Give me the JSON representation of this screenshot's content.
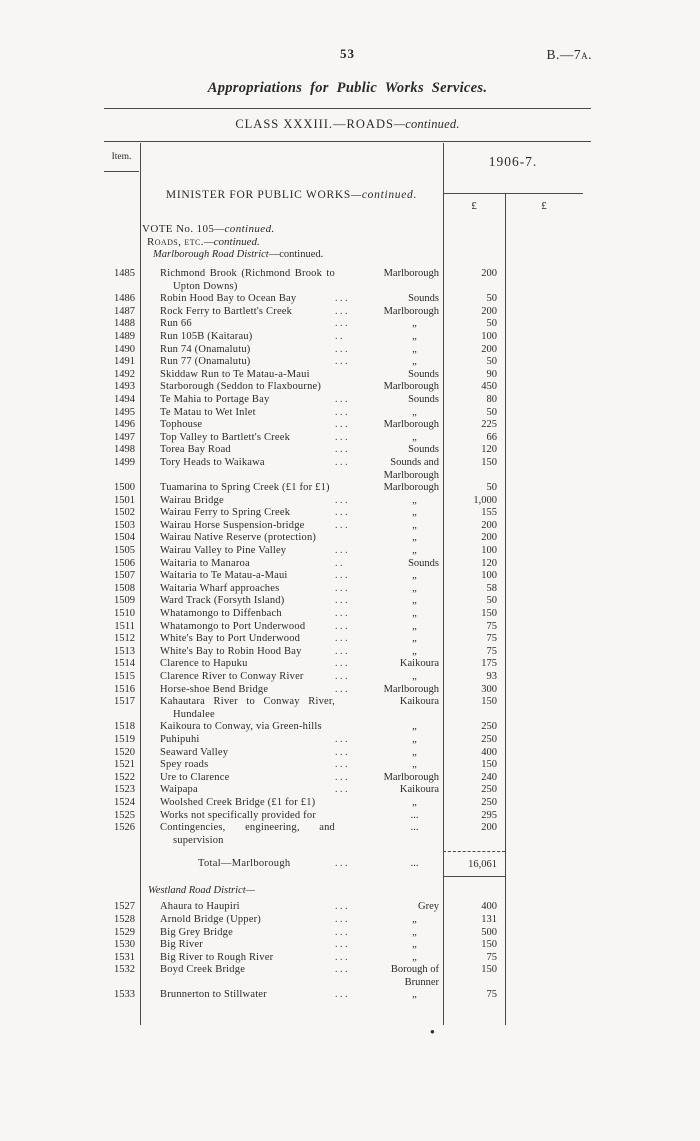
{
  "page": {
    "number": "53",
    "doc_ref": "B.—7a.",
    "title": "Appropriations for Public Works Services.",
    "class_heading": {
      "main": "CLASS XXXIII.—ROADS",
      "cont": "—continued."
    }
  },
  "table": {
    "item_header": "Item.",
    "year_header": "1906-7.",
    "pound_headers": [
      "£",
      "£"
    ],
    "minister": {
      "main": "MINISTER FOR PUBLIC WORKS",
      "cont": "—continued."
    },
    "vote": {
      "main": "VOTE No. 105",
      "cont": "—continued."
    },
    "subvote": {
      "main": "Roads, etc.",
      "cont": "—continued."
    },
    "district_heading": {
      "main": "Marlborough Road District",
      "cont": "—continued."
    },
    "rows": [
      {
        "item": "1485",
        "desc": "Richmond Brook (Richmond Brook to Upton Downs)",
        "dots": "",
        "loc": "Marlborough",
        "amt": "200"
      },
      {
        "item": "1486",
        "desc": "Robin Hood Bay to Ocean Bay",
        "dots": "...",
        "loc": "Sounds",
        "amt": "50"
      },
      {
        "item": "1487",
        "desc": "Rock Ferry to Bartlett's Creek",
        "dots": "...",
        "loc": "Marlborough",
        "amt": "200"
      },
      {
        "item": "1488",
        "desc": "Run 66",
        "dots": "...",
        "loc": "„",
        "amt": "50"
      },
      {
        "item": "1489",
        "desc": "Run 105B (Kaitarau)",
        "dots": "..",
        "loc": "„",
        "amt": "100"
      },
      {
        "item": "1490",
        "desc": "Run 74 (Onamalutu)",
        "dots": "...",
        "loc": "„",
        "amt": "200"
      },
      {
        "item": "1491",
        "desc": "Run 77 (Onamalutu)",
        "dots": "...",
        "loc": "„",
        "amt": "50"
      },
      {
        "item": "1492",
        "desc": "Skiddaw Run to Te Matau-a-Maui",
        "dots": "",
        "loc": "Sounds",
        "amt": "90"
      },
      {
        "item": "1493",
        "desc": "Starborough (Seddon to Flaxbourne)",
        "dots": "",
        "loc": "Marlborough",
        "amt": "450"
      },
      {
        "item": "1494",
        "desc": "Te Mahia to Portage Bay",
        "dots": "...",
        "loc": "Sounds",
        "amt": "80"
      },
      {
        "item": "1495",
        "desc": "Te Matau to Wet Inlet",
        "dots": "...",
        "loc": "„",
        "amt": "50"
      },
      {
        "item": "1496",
        "desc": "Tophouse",
        "dots": "...",
        "loc": "Marlborough",
        "amt": "225"
      },
      {
        "item": "1497",
        "desc": "Top Valley to Bartlett's Creek",
        "dots": "...",
        "loc": "„",
        "amt": "66"
      },
      {
        "item": "1498",
        "desc": "Torea Bay Road",
        "dots": "...",
        "loc": "Sounds",
        "amt": "120"
      },
      {
        "item": "1499",
        "desc": "Tory Heads to Waikawa",
        "dots": "...",
        "loc": "Sounds and Marlborough",
        "amt": "150"
      },
      {
        "item": "1500",
        "desc": "Tuamarina to Spring Creek (£1 for £1)",
        "dots": "",
        "loc": "Marlborough",
        "amt": "50"
      },
      {
        "item": "1501",
        "desc": "Wairau Bridge",
        "dots": "...",
        "loc": "„",
        "amt": "1,000"
      },
      {
        "item": "1502",
        "desc": "Wairau Ferry to Spring Creek",
        "dots": "...",
        "loc": "„",
        "amt": "155"
      },
      {
        "item": "1503",
        "desc": "Wairau Horse Suspension-bridge",
        "dots": "...",
        "loc": "„",
        "amt": "200"
      },
      {
        "item": "1504",
        "desc": "Wairau Native Reserve (protection)",
        "dots": "",
        "loc": "„",
        "amt": "200"
      },
      {
        "item": "1505",
        "desc": "Wairau Valley to Pine Valley",
        "dots": "...",
        "loc": "„",
        "amt": "100"
      },
      {
        "item": "1506",
        "desc": "Waitaria to Manaroa",
        "dots": "..",
        "loc": "Sounds",
        "amt": "120"
      },
      {
        "item": "1507",
        "desc": "Waitaria to Te Matau-a-Maui",
        "dots": "...",
        "loc": "„",
        "amt": "100"
      },
      {
        "item": "1508",
        "desc": "Waitaria Wharf approaches",
        "dots": "...",
        "loc": "„",
        "amt": "58"
      },
      {
        "item": "1509",
        "desc": "Ward Track (Forsyth Island)",
        "dots": "...",
        "loc": "„",
        "amt": "50"
      },
      {
        "item": "1510",
        "desc": "Whatamongo to Diffenbach",
        "dots": "...",
        "loc": "„",
        "amt": "150"
      },
      {
        "item": "1511",
        "desc": "Whatamongo to Port Underwood",
        "dots": "...",
        "loc": "„",
        "amt": "75"
      },
      {
        "item": "1512",
        "desc": "White's Bay to Port Underwood",
        "dots": "...",
        "loc": "„",
        "amt": "75"
      },
      {
        "item": "1513",
        "desc": "White's Bay to Robin Hood Bay",
        "dots": "...",
        "loc": "„",
        "amt": "75"
      },
      {
        "item": "1514",
        "desc": "Clarence to Hapuku",
        "dots": "...",
        "loc": "Kaikoura",
        "amt": "175"
      },
      {
        "item": "1515",
        "desc": "Clarence River to Conway River",
        "dots": "...",
        "loc": "„",
        "amt": "93"
      },
      {
        "item": "1516",
        "desc": "Horse-shoe Bend Bridge",
        "dots": "...",
        "loc": "Marlborough",
        "amt": "300"
      },
      {
        "item": "1517",
        "desc": "Kahautara River to Conway River, Hundalee",
        "dots": "",
        "loc": "Kaikoura",
        "amt": "150"
      },
      {
        "item": "1518",
        "desc": "Kaikoura to Conway, via Green-hills",
        "dots": "",
        "loc": "„",
        "amt": "250"
      },
      {
        "item": "1519",
        "desc": "Puhipuhi",
        "dots": "...",
        "loc": "„",
        "amt": "250"
      },
      {
        "item": "1520",
        "desc": "Seaward Valley",
        "dots": "...",
        "loc": "„",
        "amt": "400"
      },
      {
        "item": "1521",
        "desc": "Spey roads",
        "dots": "...",
        "loc": "„",
        "amt": "150"
      },
      {
        "item": "1522",
        "desc": "Ure to Clarence",
        "dots": "...",
        "loc": "Marlborough",
        "amt": "240"
      },
      {
        "item": "1523",
        "desc": "Waipapa",
        "dots": "...",
        "loc": "Kaikoura",
        "amt": "250"
      },
      {
        "item": "1524",
        "desc": "Woolshed Creek Bridge (£1 for £1)",
        "dots": "",
        "loc": "„",
        "amt": "250"
      },
      {
        "item": "1525",
        "desc": "Works not specifically provided for",
        "dots": "",
        "loc": "...",
        "amt": "295"
      },
      {
        "item": "1526",
        "desc": "Contingencies, engineering, and supervision",
        "dots": "",
        "loc": "...",
        "amt": "200"
      }
    ],
    "total_row": {
      "label": "Total—Marlborough",
      "dots1": "...",
      "dots2": "...",
      "amount": "16,061"
    },
    "westland_heading": "Westland Road District—",
    "westland_rows": [
      {
        "item": "1527",
        "desc": "Ahaura to Haupiri",
        "dots": "...",
        "loc": "Grey",
        "amt": "400"
      },
      {
        "item": "1528",
        "desc": "Arnold Bridge (Upper)",
        "dots": "...",
        "loc": "„",
        "amt": "131"
      },
      {
        "item": "1529",
        "desc": "Big Grey Bridge",
        "dots": "...",
        "loc": "„",
        "amt": "500"
      },
      {
        "item": "1530",
        "desc": "Big River",
        "dots": "...",
        "loc": "„",
        "amt": "150"
      },
      {
        "item": "1531",
        "desc": "Big River to Rough River",
        "dots": "...",
        "loc": "„",
        "amt": "75"
      },
      {
        "item": "1532",
        "desc": "Boyd Creek Bridge",
        "dots": "...",
        "loc": "Borough of Brunner",
        "amt": "150"
      },
      {
        "item": "1533",
        "desc": "Brunnerton to Stillwater",
        "dots": "...",
        "loc": "„",
        "amt": "75"
      }
    ],
    "footnote_bullet": "●"
  }
}
